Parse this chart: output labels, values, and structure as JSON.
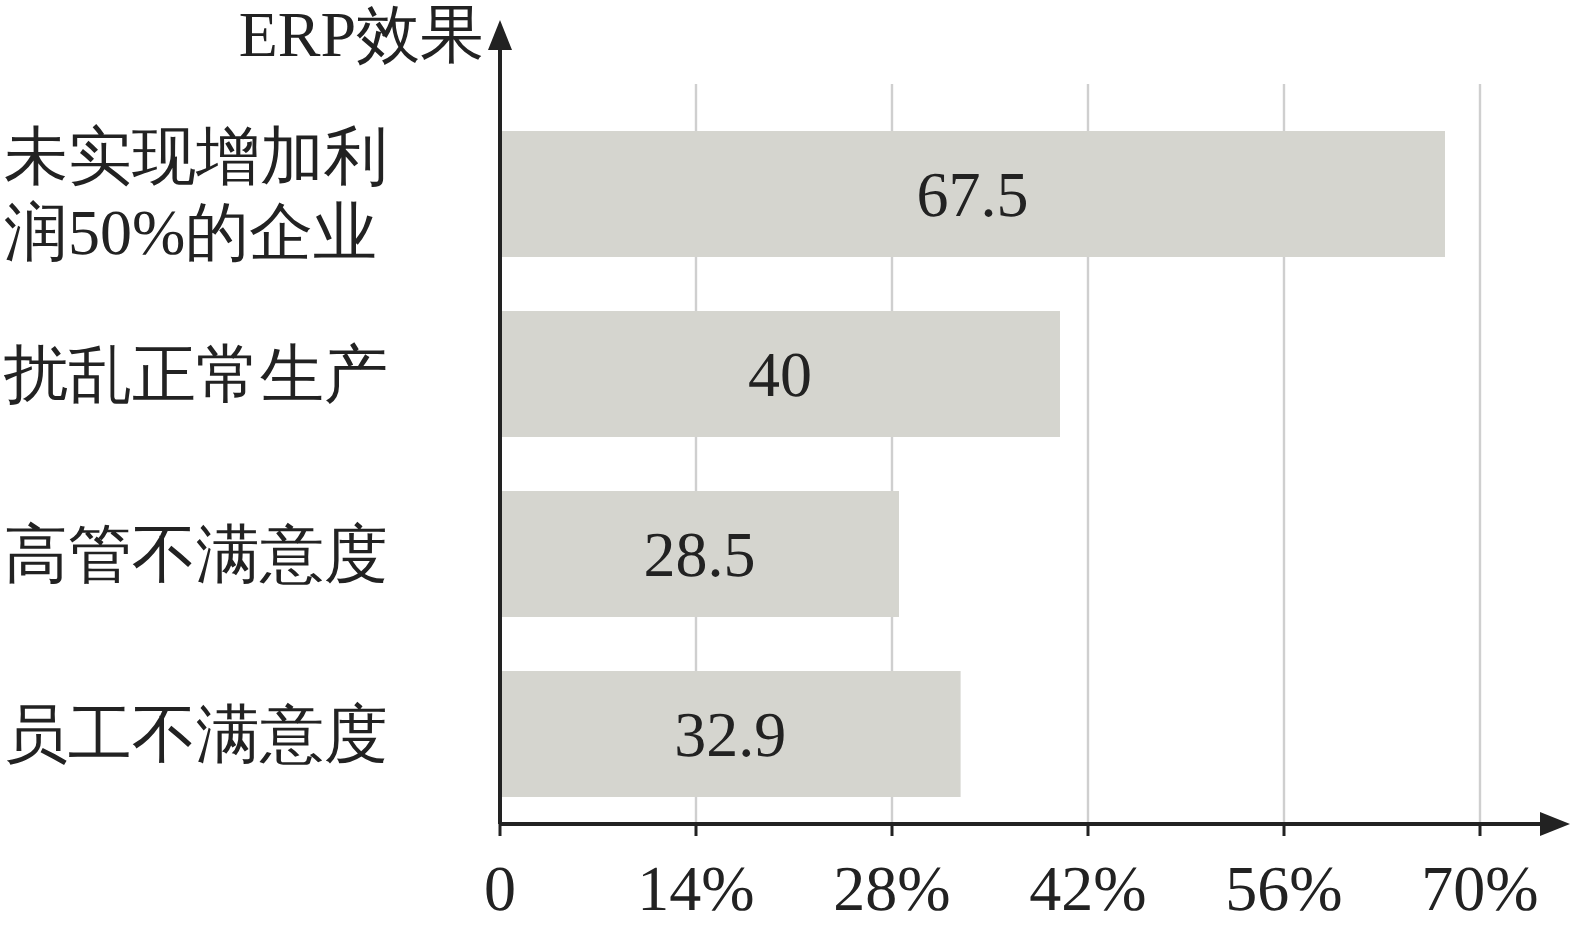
{
  "chart_data": {
    "type": "bar",
    "orientation": "horizontal",
    "ylabel": "ERP效果",
    "categories": [
      "未实现增加利润50%的企业",
      "扰乱正常生产",
      "高管不满意度",
      "员工不满意度"
    ],
    "values": [
      67.5,
      40,
      28.5,
      32.9
    ],
    "color": "#d5d5cf",
    "data_labels": true,
    "grid": "x",
    "xlim": [
      0,
      70
    ],
    "xticks": [
      0,
      {
        "value": 14,
        "label": "14%"
      },
      {
        "value": 28,
        "label": "28%"
      },
      {
        "value": 42,
        "label": "42%"
      },
      {
        "value": 56,
        "label": "56%"
      },
      {
        "value": 70,
        "label": "70%"
      }
    ]
  }
}
